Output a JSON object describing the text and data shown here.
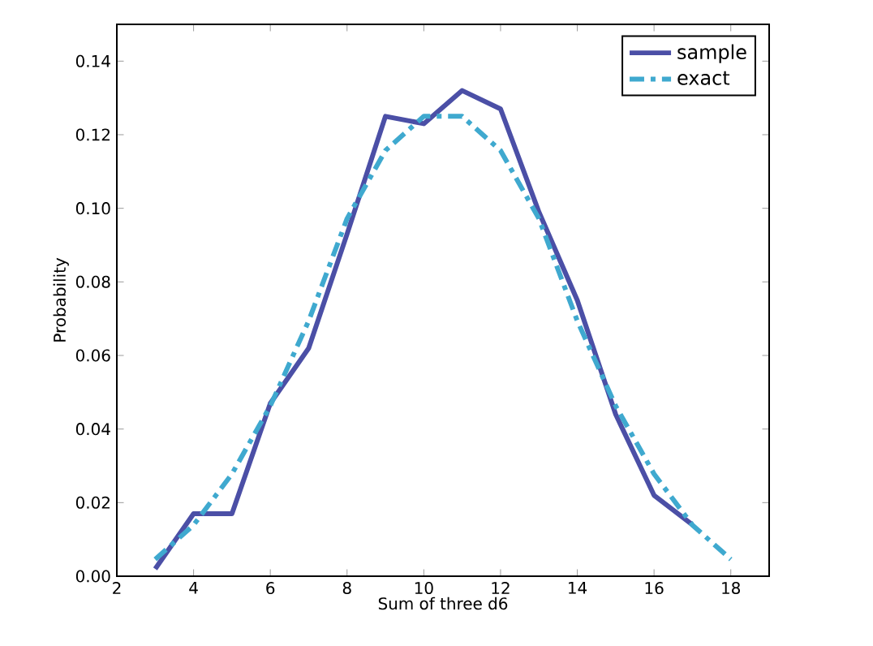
{
  "chart_data": {
    "type": "line",
    "xlabel": "Sum of three d6",
    "ylabel": "Probability",
    "xlim": [
      2,
      19
    ],
    "xticks": [
      2,
      4,
      6,
      8,
      10,
      12,
      14,
      16,
      18
    ],
    "ylim": [
      0,
      0.15
    ],
    "yticks": [
      {
        "value": 0,
        "label": "0.00"
      },
      {
        "value": 0.02,
        "label": "0.02"
      },
      {
        "value": 0.04,
        "label": "0.04"
      },
      {
        "value": 0.06,
        "label": "0.06"
      },
      {
        "value": 0.08,
        "label": "0.08"
      },
      {
        "value": 0.1,
        "label": "0.10"
      },
      {
        "value": 0.12,
        "label": "0.12"
      },
      {
        "value": 0.14,
        "label": "0.14"
      }
    ],
    "legend": "top right",
    "grid": false,
    "series": [
      {
        "name": "sample",
        "color": "#4b4fa6",
        "line_style": "solid",
        "x": [
          3,
          4,
          5,
          6,
          7,
          8,
          9,
          10,
          11,
          12,
          13,
          14,
          15,
          16,
          17
        ],
        "values": [
          0.002,
          0.017,
          0.017,
          0.047,
          0.062,
          0.093,
          0.125,
          0.123,
          0.132,
          0.127,
          0.099,
          0.075,
          0.044,
          0.022,
          0.014
        ]
      },
      {
        "name": "exact",
        "color": "#3fa9cf",
        "line_style": "dashed",
        "x": [
          3,
          4,
          5,
          6,
          7,
          8,
          9,
          10,
          11,
          12,
          13,
          14,
          15,
          16,
          17,
          18
        ],
        "values": [
          0.0046,
          0.0139,
          0.0278,
          0.0463,
          0.0694,
          0.0972,
          0.1157,
          0.125,
          0.125,
          0.1157,
          0.0972,
          0.0694,
          0.0463,
          0.0278,
          0.0139,
          0.0046
        ]
      }
    ]
  }
}
